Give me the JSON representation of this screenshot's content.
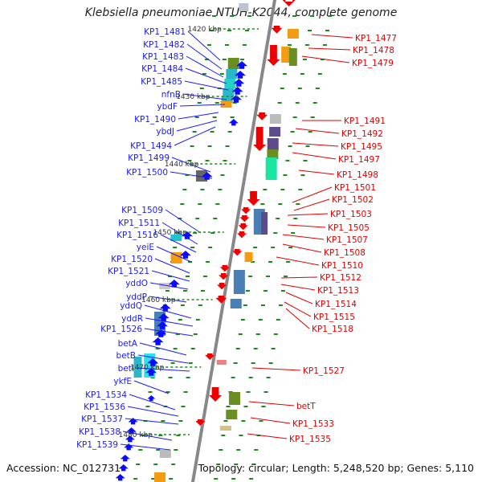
{
  "title": "Klebsiella pneumoniae NTUH-K2044, complete genome",
  "accession": "Accession: NC_012731",
  "summary": "Topology: circular; Length: 5,248,520 bp; Genes: 5,110",
  "colors": {
    "forward_label": "#1a1aff",
    "reverse_label": "#e00000",
    "forward_arrow": "#0a0aff",
    "reverse_arrow": "#ee0000",
    "backbone": "#888888",
    "scale_tick": "#1a8a1a"
  },
  "scale": {
    "labels": [
      "1420 kbp",
      "1430 kbp",
      "1440 kbp",
      "1450 kbp",
      "1460 kbp",
      "1470 kbp",
      "1480 kbp"
    ],
    "kbp": [
      1420,
      1430,
      1440,
      1450,
      1460,
      1470,
      1480
    ]
  },
  "forward_genes": [
    {
      "name": "KP1_1481"
    },
    {
      "name": "KP1_1482"
    },
    {
      "name": "KP1_1483"
    },
    {
      "name": "KP1_1484"
    },
    {
      "name": "KP1_1485"
    },
    {
      "name": "nfnB"
    },
    {
      "name": "ybdF"
    },
    {
      "name": "KP1_1490"
    },
    {
      "name": "ybdJ"
    },
    {
      "name": "KP1_1494"
    },
    {
      "name": "KP1_1499"
    },
    {
      "name": "KP1_1500"
    },
    {
      "name": "KP1_1509"
    },
    {
      "name": "KP1_1511"
    },
    {
      "name": "KP1_1516"
    },
    {
      "name": "yeiE"
    },
    {
      "name": "KP1_1520"
    },
    {
      "name": "KP1_1521"
    },
    {
      "name": "yddO"
    },
    {
      "name": "yddP"
    },
    {
      "name": "yddQ"
    },
    {
      "name": "yddR"
    },
    {
      "name": "KP1_1526"
    },
    {
      "name": "betA"
    },
    {
      "name": "betB"
    },
    {
      "name": "betI"
    },
    {
      "name": "ykfE"
    },
    {
      "name": "KP1_1534"
    },
    {
      "name": "KP1_1536"
    },
    {
      "name": "KP1_1537"
    },
    {
      "name": "KP1_1538"
    },
    {
      "name": "KP1_1539"
    }
  ],
  "reverse_genes": [
    {
      "name": "KP1_1477"
    },
    {
      "name": "KP1_1478"
    },
    {
      "name": "KP1_1479"
    },
    {
      "name": "KP1_1491"
    },
    {
      "name": "KP1_1492"
    },
    {
      "name": "KP1_1495"
    },
    {
      "name": "KP1_1497"
    },
    {
      "name": "KP1_1498"
    },
    {
      "name": "KP1_1501"
    },
    {
      "name": "KP1_1502"
    },
    {
      "name": "KP1_1503"
    },
    {
      "name": "KP1_1505"
    },
    {
      "name": "KP1_1507"
    },
    {
      "name": "KP1_1508"
    },
    {
      "name": "KP1_1510"
    },
    {
      "name": "KP1_1512"
    },
    {
      "name": "KP1_1513"
    },
    {
      "name": "KP1_1514"
    },
    {
      "name": "KP1_1515"
    },
    {
      "name": "KP1_1518"
    },
    {
      "name": "KP1_1527"
    },
    {
      "name": "betT"
    },
    {
      "name": "KP1_1533"
    },
    {
      "name": "KP1_1535"
    }
  ]
}
